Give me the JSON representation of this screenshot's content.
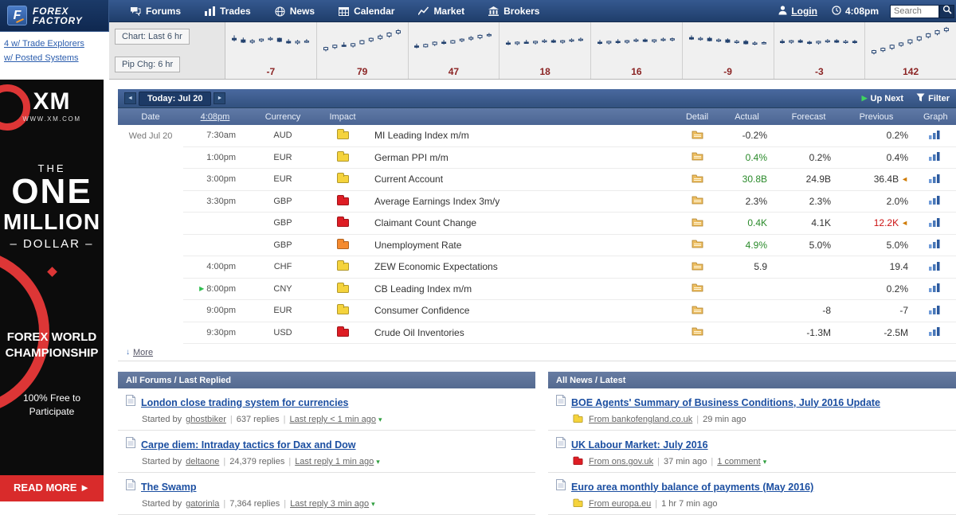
{
  "ui": {
    "separator": "|",
    "revised_marker": "◄",
    "play_marker": "▶",
    "dropdown_marker": "▾",
    "prev_arrow": "◄",
    "next_arrow": "►",
    "more_arrow": "↓"
  },
  "navbar": {
    "logo_mark": "F",
    "logo_line1": "FOREX",
    "logo_line2": "FACTORY",
    "menu": [
      {
        "label": "Forums",
        "icon": "forums-icon"
      },
      {
        "label": "Trades",
        "icon": "trades-icon"
      },
      {
        "label": "News",
        "icon": "news-icon"
      },
      {
        "label": "Calendar",
        "icon": "calendar-icon"
      },
      {
        "label": "Market",
        "icon": "market-icon"
      },
      {
        "label": "Brokers",
        "icon": "brokers-icon"
      }
    ],
    "login_label": "Login",
    "time": "4:08pm",
    "search_placeholder": "Search"
  },
  "sidebar": {
    "links": [
      "4 w/ Trade Explorers",
      "w/ Posted Systems"
    ],
    "ad": {
      "brand": "XM",
      "site": "WWW.XM.COM",
      "the": "THE",
      "one": "ONE",
      "million": "MILLION",
      "dollar": "– DOLLAR –",
      "line_forex": "FOREX WORLD",
      "line_champ": "CHAMPIONSHIP",
      "free1": "100% Free to",
      "free2": "Participate",
      "cta": "READ MORE"
    }
  },
  "chart_strip": {
    "chart_label": "Chart: Last 6 hr",
    "pip_label": "Pip Chg: 6 hr",
    "charts": [
      {
        "pip": "-7",
        "candles": [
          [
            60,
            68,
            52,
            56
          ],
          [
            56,
            62,
            48,
            50
          ],
          [
            50,
            58,
            46,
            54
          ],
          [
            54,
            60,
            50,
            58
          ],
          [
            58,
            64,
            54,
            60
          ],
          [
            60,
            62,
            50,
            52
          ],
          [
            52,
            58,
            46,
            48
          ],
          [
            48,
            56,
            44,
            52
          ],
          [
            52,
            58,
            48,
            53
          ]
        ]
      },
      {
        "pip": "79",
        "candles": [
          [
            30,
            38,
            26,
            36
          ],
          [
            36,
            44,
            32,
            42
          ],
          [
            42,
            50,
            38,
            40
          ],
          [
            40,
            48,
            36,
            46
          ],
          [
            46,
            56,
            44,
            54
          ],
          [
            54,
            62,
            50,
            60
          ],
          [
            60,
            70,
            56,
            66
          ],
          [
            66,
            76,
            62,
            74
          ],
          [
            74,
            84,
            70,
            80
          ]
        ]
      },
      {
        "pip": "47",
        "candles": [
          [
            40,
            46,
            34,
            38
          ],
          [
            38,
            46,
            36,
            44
          ],
          [
            44,
            52,
            40,
            50
          ],
          [
            50,
            56,
            44,
            48
          ],
          [
            48,
            56,
            46,
            54
          ],
          [
            54,
            60,
            50,
            58
          ],
          [
            58,
            66,
            54,
            62
          ],
          [
            62,
            70,
            58,
            68
          ],
          [
            68,
            74,
            64,
            70
          ]
        ]
      },
      {
        "pip": "18",
        "candles": [
          [
            48,
            54,
            42,
            46
          ],
          [
            46,
            52,
            42,
            50
          ],
          [
            50,
            56,
            46,
            48
          ],
          [
            48,
            54,
            44,
            52
          ],
          [
            52,
            58,
            48,
            54
          ],
          [
            54,
            58,
            48,
            50
          ],
          [
            50,
            56,
            46,
            54
          ],
          [
            54,
            60,
            50,
            56
          ],
          [
            56,
            62,
            52,
            58
          ]
        ]
      },
      {
        "pip": "16",
        "candles": [
          [
            50,
            56,
            44,
            48
          ],
          [
            48,
            54,
            44,
            52
          ],
          [
            52,
            58,
            46,
            50
          ],
          [
            50,
            56,
            46,
            54
          ],
          [
            54,
            60,
            50,
            56
          ],
          [
            56,
            60,
            50,
            52
          ],
          [
            52,
            58,
            48,
            56
          ],
          [
            56,
            62,
            52,
            58
          ],
          [
            58,
            62,
            52,
            59
          ]
        ]
      },
      {
        "pip": "-9",
        "candles": [
          [
            62,
            68,
            56,
            58
          ],
          [
            58,
            64,
            54,
            60
          ],
          [
            60,
            64,
            52,
            54
          ],
          [
            54,
            60,
            50,
            56
          ],
          [
            56,
            60,
            48,
            50
          ],
          [
            50,
            56,
            46,
            52
          ],
          [
            52,
            56,
            44,
            46
          ],
          [
            46,
            52,
            42,
            48
          ],
          [
            48,
            52,
            44,
            49
          ]
        ]
      },
      {
        "pip": "-3",
        "candles": [
          [
            52,
            58,
            46,
            50
          ],
          [
            50,
            56,
            46,
            54
          ],
          [
            54,
            58,
            48,
            50
          ],
          [
            50,
            54,
            44,
            48
          ],
          [
            48,
            54,
            44,
            52
          ],
          [
            52,
            58,
            48,
            54
          ],
          [
            54,
            58,
            48,
            50
          ],
          [
            50,
            56,
            46,
            52
          ],
          [
            52,
            56,
            46,
            50
          ]
        ]
      },
      {
        "pip": "142",
        "candles": [
          [
            22,
            30,
            18,
            28
          ],
          [
            28,
            36,
            24,
            34
          ],
          [
            34,
            44,
            30,
            42
          ],
          [
            42,
            50,
            38,
            48
          ],
          [
            48,
            58,
            44,
            56
          ],
          [
            56,
            66,
            52,
            64
          ],
          [
            64,
            74,
            60,
            72
          ],
          [
            72,
            82,
            68,
            80
          ],
          [
            80,
            90,
            76,
            86
          ]
        ]
      }
    ]
  },
  "calendar": {
    "title": "Today: Jul 20",
    "up_next_label": "Up Next",
    "filter_label": "Filter",
    "columns": {
      "date": "Date",
      "time": "4:08pm",
      "currency": "Currency",
      "impact": "Impact",
      "detail": "Detail",
      "actual": "Actual",
      "forecast": "Forecast",
      "previous": "Previous",
      "graph": "Graph"
    },
    "date_label": "Wed Jul 20",
    "rows": [
      {
        "time": "7:30am",
        "currency": "AUD",
        "impact": "yellow",
        "event": "MI Leading Index m/m",
        "actual": "-0.2%",
        "actual_class": "",
        "forecast": "",
        "previous": "0.2%"
      },
      {
        "time": "1:00pm",
        "currency": "EUR",
        "impact": "yellow",
        "event": "German PPI m/m",
        "actual": "0.4%",
        "actual_class": "val-green",
        "forecast": "0.2%",
        "previous": "0.4%"
      },
      {
        "time": "3:00pm",
        "currency": "EUR",
        "impact": "yellow",
        "event": "Current Account",
        "actual": "30.8B",
        "actual_class": "val-green",
        "forecast": "24.9B",
        "previous": "36.4B",
        "revised": true
      },
      {
        "time": "3:30pm",
        "currency": "GBP",
        "impact": "red",
        "event": "Average Earnings Index 3m/y",
        "actual": "2.3%",
        "actual_class": "",
        "forecast": "2.3%",
        "previous": "2.0%"
      },
      {
        "time": "",
        "currency": "GBP",
        "impact": "red",
        "event": "Claimant Count Change",
        "actual": "0.4K",
        "actual_class": "val-green",
        "forecast": "4.1K",
        "previous": "12.2K",
        "previous_class": "val-red",
        "revised": true
      },
      {
        "time": "",
        "currency": "GBP",
        "impact": "orange",
        "event": "Unemployment Rate",
        "actual": "4.9%",
        "actual_class": "val-green",
        "forecast": "5.0%",
        "previous": "5.0%"
      },
      {
        "time": "4:00pm",
        "currency": "CHF",
        "impact": "yellow",
        "event": "ZEW Economic Expectations",
        "actual": "5.9",
        "actual_class": "",
        "forecast": "",
        "previous": "19.4"
      },
      {
        "time": "8:00pm",
        "upnext": true,
        "currency": "CNY",
        "impact": "yellow",
        "event": "CB Leading Index m/m",
        "actual": "",
        "actual_class": "",
        "forecast": "",
        "previous": "0.2%"
      },
      {
        "time": "9:00pm",
        "currency": "EUR",
        "impact": "yellow",
        "event": "Consumer Confidence",
        "actual": "",
        "actual_class": "",
        "forecast": "-8",
        "previous": "-7"
      },
      {
        "time": "9:30pm",
        "currency": "USD",
        "impact": "red",
        "event": "Crude Oil Inventories",
        "actual": "",
        "actual_class": "",
        "forecast": "-1.3M",
        "previous": "-2.5M"
      }
    ],
    "more_label": "More"
  },
  "forums": {
    "header": "All Forums / Last Replied",
    "started_label": "Started by",
    "threads": [
      {
        "title": "London close trading system for currencies",
        "user": "ghostbiker",
        "replies": "637 replies",
        "last_reply": "Last reply < 1 min ago"
      },
      {
        "title": "Carpe diem: Intraday tactics for Dax and Dow",
        "user": "deltaone",
        "replies": "24,379 replies",
        "last_reply": "Last reply 1 min ago"
      },
      {
        "title": "The Swamp",
        "user": "gatorinla",
        "replies": "7,364 replies",
        "last_reply": "Last reply 3 min ago"
      }
    ]
  },
  "news": {
    "header": "All News / Latest",
    "items": [
      {
        "title": "BOE Agents' Summary of Business Conditions, July 2016 Update",
        "impact": "yellow",
        "source": "From bankofengland.co.uk",
        "time": "29 min ago",
        "comments": ""
      },
      {
        "title": "UK Labour Market: July 2016",
        "impact": "red",
        "source": "From ons.gov.uk",
        "time": "37 min ago",
        "comments": "1 comment"
      },
      {
        "title": "Euro area monthly balance of payments (May 2016)",
        "impact": "yellow",
        "source": "From europa.eu",
        "time": "1 hr 7 min ago",
        "comments": ""
      }
    ]
  }
}
